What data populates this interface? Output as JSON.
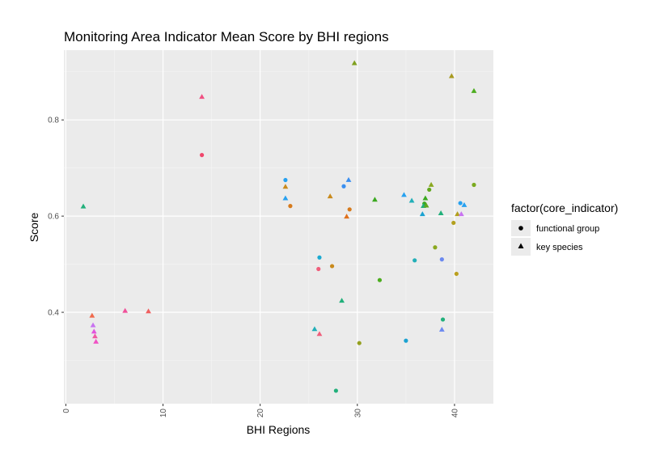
{
  "chart_data": {
    "type": "scatter",
    "title": "Monitoring Area Indicator Mean Score by BHI regions",
    "xlabel": "BHI Regions",
    "ylabel": "Score",
    "xlim": [
      -0.2,
      44
    ],
    "ylim": [
      0.21,
      0.945
    ],
    "x_ticks": [
      0,
      10,
      20,
      30,
      40
    ],
    "x_tick_labels": [
      "0",
      "10",
      "20",
      "30",
      "40"
    ],
    "y_ticks": [
      0.4,
      0.6,
      0.8
    ],
    "y_tick_labels": [
      "0.4",
      "0.6",
      "0.8"
    ],
    "grid": true,
    "legend": {
      "title": "factor(core_indicator)",
      "position": "right",
      "entries": [
        {
          "label": "functional group",
          "shape": "circle"
        },
        {
          "label": "key species",
          "shape": "triangle"
        }
      ]
    },
    "series": [
      {
        "shape": "circle",
        "points": [
          {
            "x": 14,
            "y": 0.727,
            "color": "#F0466C"
          },
          {
            "x": 22.6,
            "y": 0.675,
            "color": "#27A1F0"
          },
          {
            "x": 23.1,
            "y": 0.621,
            "color": "#D67A1C"
          },
          {
            "x": 26.1,
            "y": 0.514,
            "color": "#1BAAD1"
          },
          {
            "x": 26.0,
            "y": 0.49,
            "color": "#F05E7B"
          },
          {
            "x": 27.4,
            "y": 0.496,
            "color": "#C98A1C"
          },
          {
            "x": 28.6,
            "y": 0.662,
            "color": "#3A8FF0"
          },
          {
            "x": 29.2,
            "y": 0.614,
            "color": "#D67A1C"
          },
          {
            "x": 30.2,
            "y": 0.336,
            "color": "#94A01F"
          },
          {
            "x": 27.8,
            "y": 0.237,
            "color": "#22B07B"
          },
          {
            "x": 32.3,
            "y": 0.467,
            "color": "#4CAD1F"
          },
          {
            "x": 35.0,
            "y": 0.341,
            "color": "#1BA2D1"
          },
          {
            "x": 35.9,
            "y": 0.508,
            "color": "#22AFB8"
          },
          {
            "x": 36.9,
            "y": 0.626,
            "color": "#3AA81F"
          },
          {
            "x": 37.4,
            "y": 0.655,
            "color": "#62A81F"
          },
          {
            "x": 38.0,
            "y": 0.535,
            "color": "#8AA81F"
          },
          {
            "x": 38.7,
            "y": 0.51,
            "color": "#6B89F0"
          },
          {
            "x": 38.8,
            "y": 0.385,
            "color": "#22B07B"
          },
          {
            "x": 39.9,
            "y": 0.586,
            "color": "#B3A01F"
          },
          {
            "x": 40.2,
            "y": 0.48,
            "color": "#BBA01F"
          },
          {
            "x": 40.6,
            "y": 0.627,
            "color": "#27A1F0"
          },
          {
            "x": 42.0,
            "y": 0.665,
            "color": "#7AAA1F"
          }
        ]
      },
      {
        "shape": "triangle",
        "points": [
          {
            "x": 1.8,
            "y": 0.62,
            "color": "#22B07B"
          },
          {
            "x": 2.7,
            "y": 0.393,
            "color": "#F06A4C"
          },
          {
            "x": 2.8,
            "y": 0.373,
            "color": "#C873F0"
          },
          {
            "x": 2.9,
            "y": 0.36,
            "color": "#E255DE"
          },
          {
            "x": 3.0,
            "y": 0.35,
            "color": "#F05AA5"
          },
          {
            "x": 3.1,
            "y": 0.339,
            "color": "#F052C4"
          },
          {
            "x": 6.1,
            "y": 0.403,
            "color": "#F0509A"
          },
          {
            "x": 8.5,
            "y": 0.402,
            "color": "#F06060"
          },
          {
            "x": 14.0,
            "y": 0.848,
            "color": "#F05082"
          },
          {
            "x": 22.6,
            "y": 0.661,
            "color": "#C98A1C"
          },
          {
            "x": 22.6,
            "y": 0.637,
            "color": "#27A1F0"
          },
          {
            "x": 25.6,
            "y": 0.365,
            "color": "#22AFB8"
          },
          {
            "x": 26.1,
            "y": 0.355,
            "color": "#F05E7B"
          },
          {
            "x": 27.2,
            "y": 0.641,
            "color": "#C98A1C"
          },
          {
            "x": 28.4,
            "y": 0.424,
            "color": "#22B07B"
          },
          {
            "x": 28.9,
            "y": 0.599,
            "color": "#E0711C"
          },
          {
            "x": 29.1,
            "y": 0.675,
            "color": "#3A8FF0"
          },
          {
            "x": 29.7,
            "y": 0.918,
            "color": "#7FA01F"
          },
          {
            "x": 31.8,
            "y": 0.634,
            "color": "#3AA81F"
          },
          {
            "x": 34.8,
            "y": 0.644,
            "color": "#27A1F0"
          },
          {
            "x": 35.6,
            "y": 0.632,
            "color": "#22AFB8"
          },
          {
            "x": 36.7,
            "y": 0.604,
            "color": "#1BA2D1"
          },
          {
            "x": 36.8,
            "y": 0.621,
            "color": "#22B07B"
          },
          {
            "x": 37.0,
            "y": 0.637,
            "color": "#3AA81F"
          },
          {
            "x": 37.1,
            "y": 0.622,
            "color": "#62A81F"
          },
          {
            "x": 37.6,
            "y": 0.665,
            "color": "#8AA81F"
          },
          {
            "x": 38.6,
            "y": 0.606,
            "color": "#22B07B"
          },
          {
            "x": 38.7,
            "y": 0.364,
            "color": "#6B89F0"
          },
          {
            "x": 39.7,
            "y": 0.891,
            "color": "#A89A1F"
          },
          {
            "x": 40.3,
            "y": 0.604,
            "color": "#B3A01F"
          },
          {
            "x": 40.7,
            "y": 0.604,
            "color": "#C873F0"
          },
          {
            "x": 41.0,
            "y": 0.623,
            "color": "#27A1F0"
          },
          {
            "x": 42.0,
            "y": 0.86,
            "color": "#4CAD1F"
          }
        ]
      }
    ]
  }
}
